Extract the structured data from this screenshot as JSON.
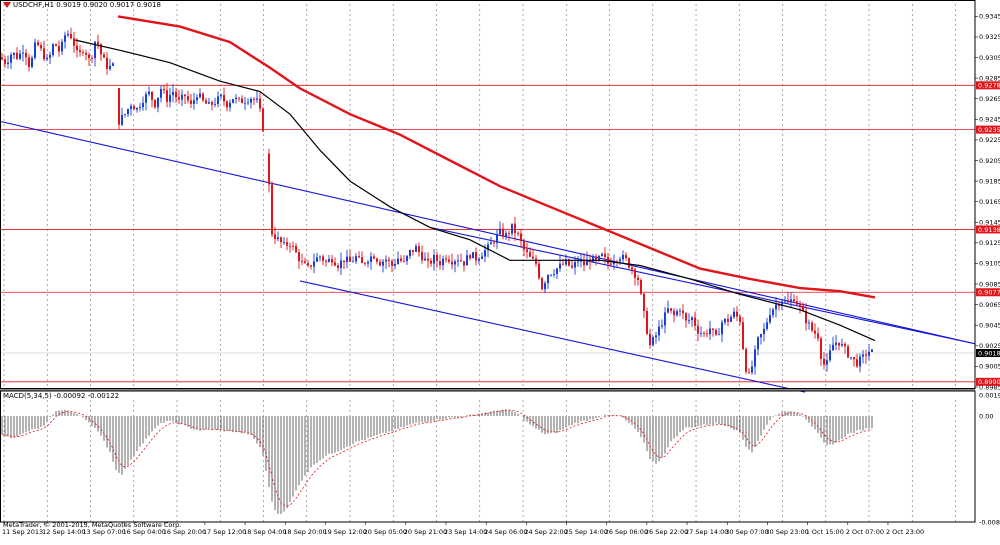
{
  "header": {
    "symbol_line": "USDCHF,H1  0.9019 0.9020 0.9017 0.9018",
    "macd_label": "MACD(5,34,5) -0.00092 -0.00122",
    "copyright": "MetaTrader, © 2001-2013, MetaQuotes Software Corp."
  },
  "colors": {
    "bull": "#1a3fd6",
    "bear": "#e0141b",
    "ma_slow": "#e0141b",
    "ma_fast": "#000000",
    "channel": "#1414d8",
    "level": "#e0141b",
    "grid": "#000000",
    "badge_current": "#000000"
  },
  "chart_data": [
    {
      "type": "candlestick",
      "title": "USDCHF,H1",
      "ylim": [
        0.8984,
        0.9357
      ],
      "price_ticks": [
        "0.9345",
        "0.9325",
        "0.9305",
        "0.9285",
        "0.9265",
        "0.9245",
        "0.9225",
        "0.9205",
        "0.9185",
        "0.9165",
        "0.9145",
        "0.9125",
        "0.9105",
        "0.9085",
        "0.9065",
        "0.9045",
        "0.9025",
        "0.9005",
        "0.8985"
      ],
      "time_ticks": [
        "11 Sep 2013",
        "12 Sep 14:00",
        "13 Sep 07:00",
        "16 Sep 04:00",
        "16 Sep 20:00",
        "17 Sep 12:00",
        "18 Sep 04:00",
        "18 Sep 20:00",
        "19 Sep 12:00",
        "20 Sep 05:00",
        "20 Sep 21:00",
        "23 Sep 14:00",
        "24 Sep 06:00",
        "24 Sep 22:00",
        "25 Sep 14:00",
        "26 Sep 06:00",
        "26 Sep 22:00",
        "27 Sep 14:00",
        "30 Sep 07:00",
        "30 Sep 23:00",
        "1 Oct 15:00",
        "2 Oct 07:00",
        "2 Oct 23:00"
      ],
      "horizontal_levels": [
        {
          "value": 0.9278,
          "label": "0.9278"
        },
        {
          "value": 0.9235,
          "label": "0.9235"
        },
        {
          "value": 0.9138,
          "label": "0.9138"
        },
        {
          "value": 0.9077,
          "label": "0.9077"
        },
        {
          "value": 0.899,
          "label": "0.8990"
        }
      ],
      "current_price": {
        "value": 0.9018,
        "label": "0.9018"
      },
      "close_path": [
        [
          0,
          0.9305
        ],
        [
          6,
          0.93
        ],
        [
          12,
          0.931
        ],
        [
          18,
          0.9305
        ],
        [
          24,
          0.9315
        ],
        [
          30,
          0.9295
        ],
        [
          36,
          0.932
        ],
        [
          42,
          0.931
        ],
        [
          48,
          0.93
        ],
        [
          54,
          0.932
        ],
        [
          60,
          0.931
        ],
        [
          66,
          0.933
        ],
        [
          72,
          0.9325
        ],
        [
          78,
          0.9305
        ],
        [
          84,
          0.9315
        ],
        [
          90,
          0.93
        ],
        [
          96,
          0.9325
        ],
        [
          102,
          0.9305
        ],
        [
          108,
          0.9295
        ],
        [
          114,
          0.9297
        ],
        [
          119,
          0.9243
        ],
        [
          125,
          0.925
        ],
        [
          131,
          0.926
        ],
        [
          137,
          0.9255
        ],
        [
          143,
          0.9265
        ],
        [
          149,
          0.927
        ],
        [
          155,
          0.926
        ],
        [
          161,
          0.9275
        ],
        [
          167,
          0.9265
        ],
        [
          173,
          0.9272
        ],
        [
          179,
          0.9262
        ],
        [
          185,
          0.9268
        ],
        [
          191,
          0.9258
        ],
        [
          197,
          0.927
        ],
        [
          203,
          0.9262
        ],
        [
          209,
          0.9258
        ],
        [
          215,
          0.9262
        ],
        [
          221,
          0.9266
        ],
        [
          227,
          0.926
        ],
        [
          233,
          0.9266
        ],
        [
          239,
          0.9262
        ],
        [
          245,
          0.9264
        ],
        [
          251,
          0.9266
        ],
        [
          257,
          0.9262
        ],
        [
          262,
          0.9245
        ],
        [
          268,
          0.9195
        ],
        [
          272,
          0.9135
        ],
        [
          278,
          0.9128
        ],
        [
          284,
          0.9122
        ],
        [
          290,
          0.9125
        ],
        [
          296,
          0.9115
        ],
        [
          302,
          0.9105
        ],
        [
          308,
          0.91
        ],
        [
          314,
          0.9108
        ],
        [
          320,
          0.9112
        ],
        [
          326,
          0.9106
        ],
        [
          332,
          0.911
        ],
        [
          338,
          0.9104
        ],
        [
          344,
          0.9109
        ],
        [
          350,
          0.9106
        ],
        [
          356,
          0.9111
        ],
        [
          362,
          0.9104
        ],
        [
          368,
          0.911
        ],
        [
          374,
          0.9113
        ],
        [
          380,
          0.9106
        ],
        [
          386,
          0.9109
        ],
        [
          392,
          0.9103
        ],
        [
          398,
          0.911
        ],
        [
          404,
          0.9105
        ],
        [
          410,
          0.9116
        ],
        [
          416,
          0.912
        ],
        [
          422,
          0.9112
        ],
        [
          428,
          0.9104
        ],
        [
          434,
          0.911
        ],
        [
          440,
          0.9106
        ],
        [
          446,
          0.9112
        ],
        [
          452,
          0.9108
        ],
        [
          458,
          0.911
        ],
        [
          464,
          0.9106
        ],
        [
          470,
          0.9114
        ],
        [
          476,
          0.911
        ],
        [
          482,
          0.9115
        ],
        [
          488,
          0.912
        ],
        [
          494,
          0.9128
        ],
        [
          500,
          0.9135
        ],
        [
          506,
          0.9132
        ],
        [
          512,
          0.914
        ],
        [
          518,
          0.9132
        ],
        [
          524,
          0.9118
        ],
        [
          530,
          0.911
        ],
        [
          536,
          0.9105
        ],
        [
          542,
          0.9082
        ],
        [
          548,
          0.9095
        ],
        [
          554,
          0.9098
        ],
        [
          560,
          0.9102
        ],
        [
          566,
          0.9106
        ],
        [
          572,
          0.91
        ],
        [
          578,
          0.9108
        ],
        [
          584,
          0.9104
        ],
        [
          590,
          0.911
        ],
        [
          596,
          0.9106
        ],
        [
          602,
          0.9112
        ],
        [
          608,
          0.9105
        ],
        [
          614,
          0.911
        ],
        [
          620,
          0.9112
        ],
        [
          626,
          0.9108
        ],
        [
          632,
          0.91
        ],
        [
          638,
          0.909
        ],
        [
          644,
          0.9055
        ],
        [
          650,
          0.9025
        ],
        [
          656,
          0.9035
        ],
        [
          662,
          0.9048
        ],
        [
          668,
          0.906
        ],
        [
          674,
          0.9054
        ],
        [
          680,
          0.9062
        ],
        [
          686,
          0.9048
        ],
        [
          692,
          0.9052
        ],
        [
          698,
          0.904
        ],
        [
          704,
          0.9036
        ],
        [
          710,
          0.9042
        ],
        [
          716,
          0.9032
        ],
        [
          722,
          0.9048
        ],
        [
          728,
          0.905
        ],
        [
          734,
          0.9056
        ],
        [
          740,
          0.905
        ],
        [
          744,
          0.9015
        ],
        [
          748,
          0.8992
        ],
        [
          752,
          0.9005
        ],
        [
          758,
          0.903
        ],
        [
          764,
          0.904
        ],
        [
          770,
          0.9058
        ],
        [
          776,
          0.9065
        ],
        [
          782,
          0.907
        ],
        [
          788,
          0.9066
        ],
        [
          794,
          0.9072
        ],
        [
          800,
          0.9062
        ],
        [
          806,
          0.905
        ],
        [
          812,
          0.904
        ],
        [
          818,
          0.9035
        ],
        [
          822,
          0.901
        ],
        [
          826,
          0.9004
        ],
        [
          832,
          0.9025
        ],
        [
          838,
          0.903
        ],
        [
          844,
          0.9022
        ],
        [
          850,
          0.9015
        ],
        [
          856,
          0.9008
        ],
        [
          862,
          0.9012
        ],
        [
          868,
          0.902
        ],
        [
          874,
          0.9018
        ]
      ],
      "series": [
        {
          "name": "MA slow",
          "style": "red-thick",
          "points": [
            [
              118,
              0.9345
            ],
            [
              180,
              0.9335
            ],
            [
              230,
              0.932
            ],
            [
              270,
              0.9295
            ],
            [
              300,
              0.9275
            ],
            [
              350,
              0.925
            ],
            [
              400,
              0.923
            ],
            [
              450,
              0.9205
            ],
            [
              500,
              0.918
            ],
            [
              550,
              0.916
            ],
            [
              600,
              0.914
            ],
            [
              650,
              0.912
            ],
            [
              700,
              0.91
            ],
            [
              750,
              0.909
            ],
            [
              800,
              0.9081
            ],
            [
              840,
              0.9078
            ],
            [
              875,
              0.9072
            ]
          ]
        },
        {
          "name": "MA fast",
          "style": "black",
          "points": [
            [
              75,
              0.9322
            ],
            [
              120,
              0.9312
            ],
            [
              170,
              0.93
            ],
            [
              220,
              0.9282
            ],
            [
              260,
              0.9272
            ],
            [
              290,
              0.925
            ],
            [
              320,
              0.9215
            ],
            [
              350,
              0.9185
            ],
            [
              390,
              0.916
            ],
            [
              430,
              0.914
            ],
            [
              470,
              0.9128
            ],
            [
              510,
              0.9108
            ],
            [
              560,
              0.9108
            ],
            [
              600,
              0.9108
            ],
            [
              640,
              0.9103
            ],
            [
              690,
              0.909
            ],
            [
              740,
              0.9075
            ],
            [
              800,
              0.906
            ],
            [
              840,
              0.9045
            ],
            [
              875,
              0.903
            ]
          ]
        }
      ],
      "channel_lines": [
        {
          "from": [
            0,
            0.9243
          ],
          "to": [
            975,
            0.9027
          ]
        },
        {
          "from": [
            300,
            0.9088
          ],
          "to": [
            805,
            0.898
          ]
        },
        {
          "from": [
            430,
            0.914
          ],
          "to": [
            975,
            0.9027
          ]
        }
      ]
    },
    {
      "type": "bar",
      "title": "MACD(5,34,5) -0.00092 -0.00122",
      "ylim": [
        -0.00878,
        0.00191
      ],
      "value_ticks": [
        "0.00191",
        "0.00",
        "-0.00878"
      ],
      "histogram_path": [
        [
          0,
          -0.0015
        ],
        [
          10,
          -0.0018
        ],
        [
          20,
          -0.0016
        ],
        [
          30,
          -0.0012
        ],
        [
          40,
          -0.001
        ],
        [
          45,
          -0.0008
        ],
        [
          55,
          0.0005
        ],
        [
          65,
          0.0008
        ],
        [
          75,
          0.0003
        ],
        [
          85,
          -0.0002
        ],
        [
          95,
          -0.001
        ],
        [
          102,
          -0.0018
        ],
        [
          110,
          -0.003
        ],
        [
          116,
          -0.0045
        ],
        [
          122,
          -0.0048
        ],
        [
          130,
          -0.0038
        ],
        [
          140,
          -0.0025
        ],
        [
          150,
          -0.0015
        ],
        [
          158,
          -0.0008
        ],
        [
          166,
          -0.0004
        ],
        [
          178,
          -0.0006
        ],
        [
          190,
          -0.001
        ],
        [
          200,
          -0.0012
        ],
        [
          210,
          -0.0011
        ],
        [
          222,
          -0.0012
        ],
        [
          235,
          -0.0013
        ],
        [
          250,
          -0.0015
        ],
        [
          262,
          -0.0028
        ],
        [
          268,
          -0.0055
        ],
        [
          274,
          -0.0078
        ],
        [
          280,
          -0.0082
        ],
        [
          288,
          -0.0075
        ],
        [
          296,
          -0.0062
        ],
        [
          304,
          -0.005
        ],
        [
          314,
          -0.004
        ],
        [
          326,
          -0.0033
        ],
        [
          340,
          -0.0028
        ],
        [
          355,
          -0.0022
        ],
        [
          370,
          -0.0018
        ],
        [
          385,
          -0.0014
        ],
        [
          400,
          -0.001
        ],
        [
          415,
          -0.0006
        ],
        [
          430,
          -0.0004
        ],
        [
          445,
          -0.0002
        ],
        [
          460,
          -0.0001
        ],
        [
          475,
          0.0002
        ],
        [
          490,
          0.0005
        ],
        [
          505,
          0.0008
        ],
        [
          515,
          0.0005
        ],
        [
          525,
          -0.0004
        ],
        [
          535,
          -0.001
        ],
        [
          545,
          -0.0015
        ],
        [
          555,
          -0.0014
        ],
        [
          565,
          -0.001
        ],
        [
          575,
          -0.0006
        ],
        [
          590,
          -0.0003
        ],
        [
          605,
          0.0001
        ],
        [
          620,
          0.0
        ],
        [
          632,
          -0.0008
        ],
        [
          642,
          -0.0018
        ],
        [
          650,
          -0.0035
        ],
        [
          656,
          -0.004
        ],
        [
          664,
          -0.0032
        ],
        [
          672,
          -0.002
        ],
        [
          685,
          -0.001
        ],
        [
          700,
          -0.0008
        ],
        [
          715,
          -0.0006
        ],
        [
          728,
          -0.0008
        ],
        [
          740,
          -0.0014
        ],
        [
          746,
          -0.0025
        ],
        [
          752,
          -0.003
        ],
        [
          760,
          -0.0018
        ],
        [
          768,
          -0.0005
        ],
        [
          778,
          0.0003
        ],
        [
          788,
          0.0006
        ],
        [
          798,
          0.0004
        ],
        [
          808,
          -0.0004
        ],
        [
          818,
          -0.0015
        ],
        [
          826,
          -0.0025
        ],
        [
          836,
          -0.0022
        ],
        [
          848,
          -0.0015
        ],
        [
          860,
          -0.0012
        ],
        [
          874,
          -0.0009
        ]
      ]
    }
  ]
}
